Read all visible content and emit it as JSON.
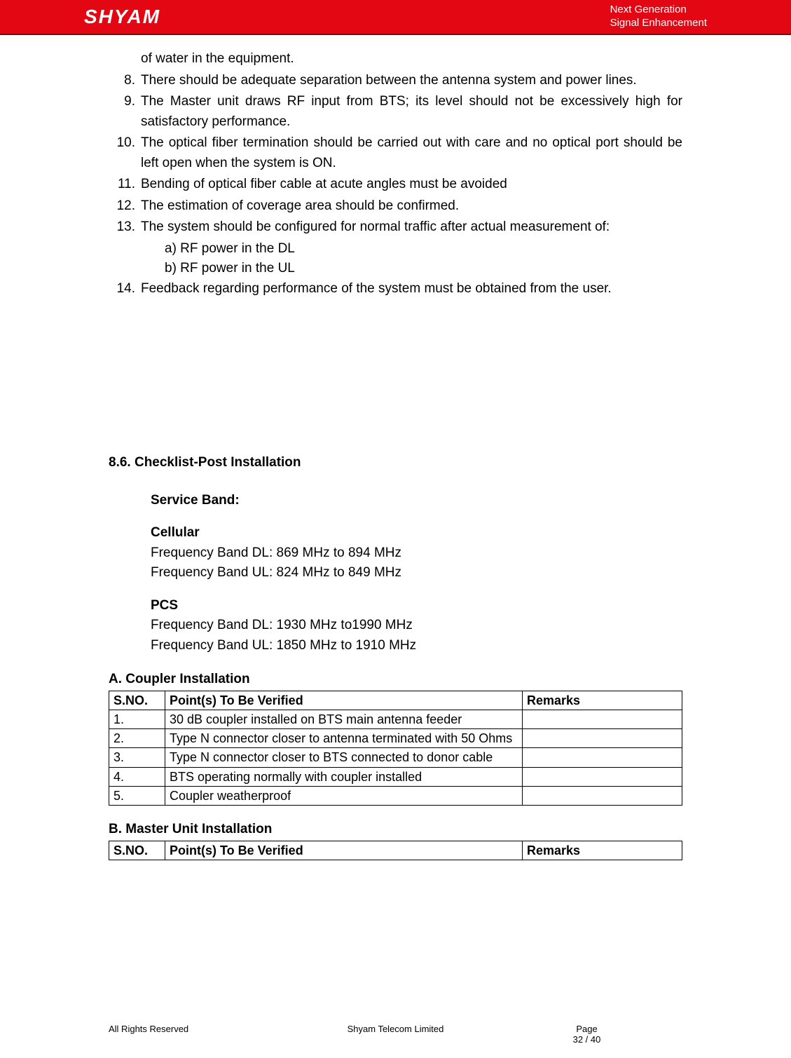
{
  "header": {
    "logo_text": "SHYAM",
    "tag_line1": "Next Generation",
    "tag_line2": "Signal Enhancement",
    "bar_bg": "#e30613",
    "text_color": "#ffffff"
  },
  "body": {
    "continuation": "of water in the equipment.",
    "items": [
      {
        "num": "8.",
        "text": "There should be adequate separation between the antenna system and power lines."
      },
      {
        "num": "9.",
        "text": "The Master unit draws RF input from BTS; its level should not be excessively high for satisfactory performance."
      },
      {
        "num": "10.",
        "text": "The optical fiber termination should be carried out with care and no optical port should be left open when the system is ON."
      },
      {
        "num": "11.",
        "text": " Bending of optical fiber cable at acute angles must be avoided"
      },
      {
        "num": "12.",
        "text": "The estimation of coverage area should be confirmed."
      },
      {
        "num": "13.",
        "text": " The system should be configured for normal traffic after actual measurement of:"
      }
    ],
    "sub_a": "a) RF power in the DL",
    "sub_b": "b) RF power in the UL",
    "item14": {
      "num": "14.",
      "text": "Feedback regarding performance of the system must be obtained from the user."
    },
    "section_heading": "8.6. Checklist-Post Installation",
    "service_band_label": "Service Band:",
    "cellular_label": "Cellular",
    "cell_dl": "Frequency Band DL:  869 MHz to 894 MHz",
    "cell_ul": "Frequency Band UL:  824 MHz to 849 MHz",
    "pcs_label": "PCS",
    "pcs_dl": "Frequency Band DL:  1930 MHz to1990 MHz",
    "pcs_ul": "Frequency Band UL:  1850 MHz to 1910 MHz",
    "tableA": {
      "title": "A. Coupler Installation",
      "columns": [
        "S.NO.",
        "Point(s) To Be Verified",
        "Remarks"
      ],
      "rows": [
        [
          "1.",
          "30 dB coupler installed on BTS main antenna feeder",
          ""
        ],
        [
          "2.",
          "Type N connector closer to antenna terminated with 50 Ohms",
          ""
        ],
        [
          "3.",
          "Type N connector closer to BTS connected to donor cable",
          ""
        ],
        [
          "4.",
          "BTS operating normally with coupler installed",
          ""
        ],
        [
          "5.",
          "Coupler weatherproof",
          ""
        ]
      ]
    },
    "tableB": {
      "title": "B. Master Unit Installation",
      "columns": [
        "S.NO.",
        "Point(s) To Be Verified",
        "Remarks"
      ]
    }
  },
  "footer": {
    "left": "All Rights Reserved",
    "mid": "Shyam Telecom Limited",
    "right_label": "Page",
    "right_num": "32 / 40"
  },
  "style": {
    "page_bg": "#ffffff",
    "text_color": "#000000",
    "body_fontsize": 19,
    "table_border": "#000000"
  }
}
